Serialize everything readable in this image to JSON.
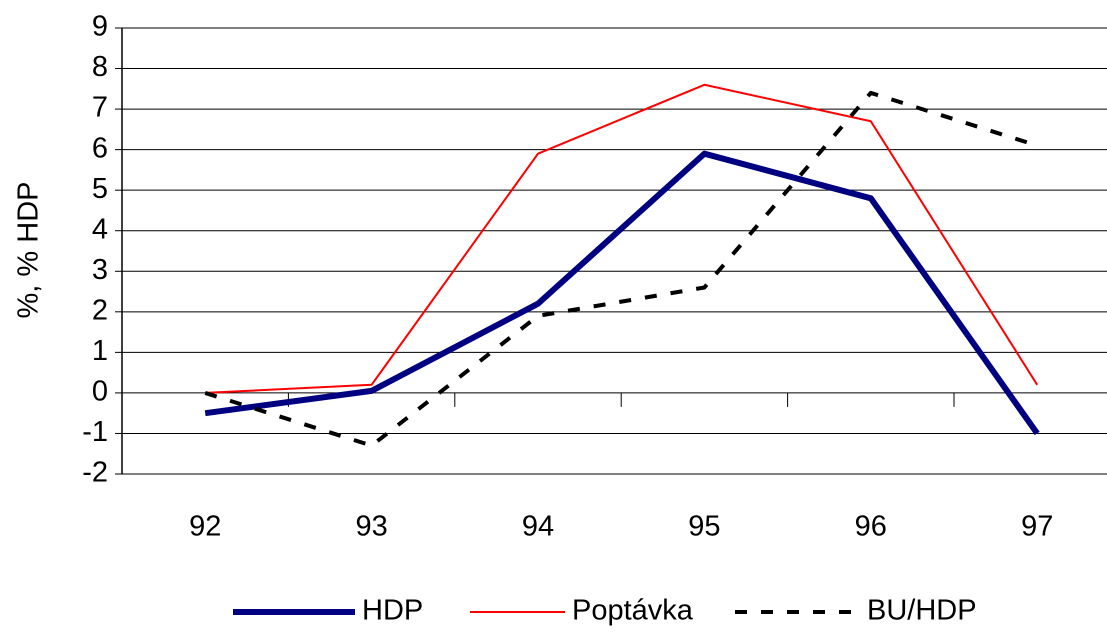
{
  "chart_data": {
    "type": "line",
    "y_label": "%,  % HDP",
    "categories": [
      "92",
      "93",
      "94",
      "95",
      "96",
      "97"
    ],
    "series": [
      {
        "name": "HDP",
        "color": "#000080",
        "width": 6,
        "dash": "none",
        "values": [
          -0.5,
          0.05,
          2.2,
          5.9,
          4.8,
          -1.0
        ]
      },
      {
        "name": "Poptávka",
        "color": "#ff0000",
        "width": 2,
        "dash": "none",
        "values": [
          0,
          0.2,
          5.9,
          7.6,
          6.7,
          0.2
        ]
      },
      {
        "name": "BU/HDP",
        "color": "#000000",
        "width": 4,
        "dash": "12 14",
        "values": [
          0,
          -1.3,
          1.9,
          2.6,
          7.4,
          6.1
        ]
      }
    ],
    "ylim": [
      -2,
      9
    ],
    "yticks": [
      -2,
      -1,
      0,
      1,
      2,
      3,
      4,
      5,
      6,
      7,
      8,
      9
    ],
    "grid": true,
    "legend": "bottom"
  }
}
